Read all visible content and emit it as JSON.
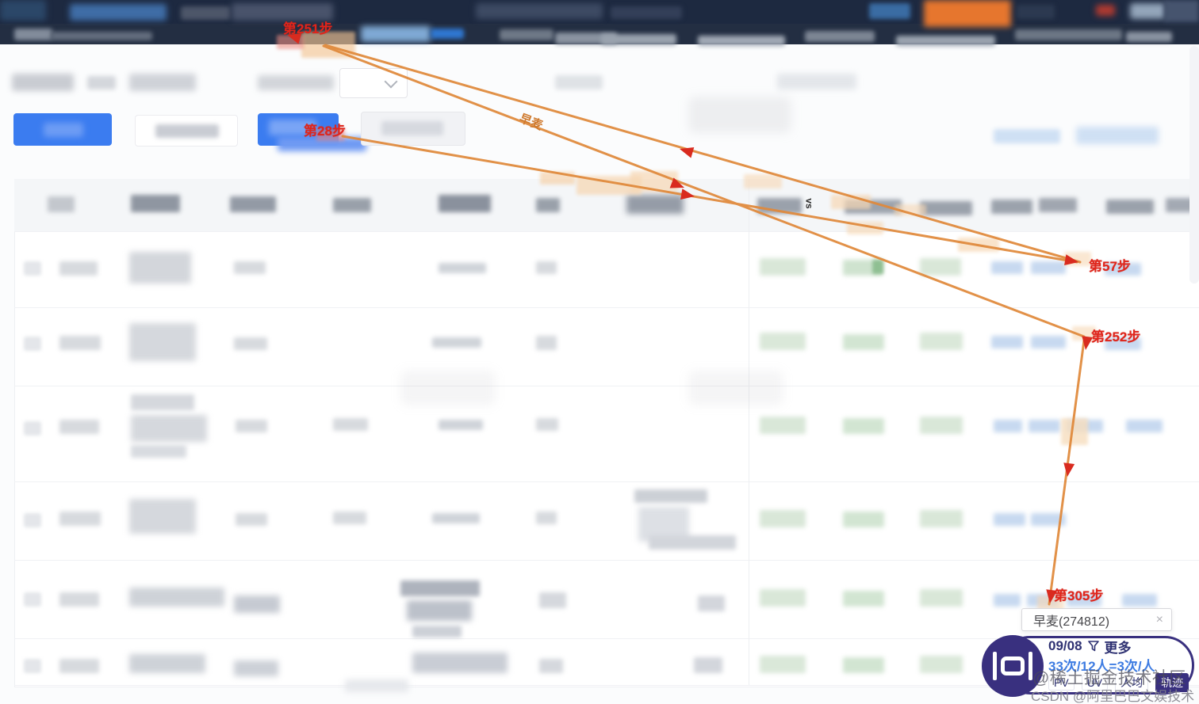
{
  "annotations": {
    "steps": [
      {
        "id": "step-251",
        "label": "第251步"
      },
      {
        "id": "step-28",
        "label": "第28步"
      },
      {
        "id": "step-57",
        "label": "第57步"
      },
      {
        "id": "step-252",
        "label": "第252步"
      },
      {
        "id": "step-305",
        "label": "第305步"
      }
    ],
    "path_label": "早麦",
    "arrow_color": "#e0893b",
    "marker_color": "#d92b1f",
    "label_color": "#e0251b"
  },
  "tooltip": {
    "text": "早麦(274812)",
    "close_icon": "×"
  },
  "trajectory_panel": {
    "date": "09/08",
    "more_label": "更多",
    "stats": "33次/12人=3次/人",
    "tabs": [
      {
        "label": "PV",
        "active": false
      },
      {
        "label": "UV",
        "active": false
      },
      {
        "label": "人均",
        "active": false
      },
      {
        "label": "轨迹",
        "active": true
      }
    ],
    "accent_color": "#39307f",
    "stats_color": "#3e7ce2"
  },
  "table": {
    "vs_label": "vs"
  },
  "watermarks": {
    "juejin": "@稀土掘金技术社区",
    "csdn": "CSDN @阿里巴巴文娱技术"
  }
}
